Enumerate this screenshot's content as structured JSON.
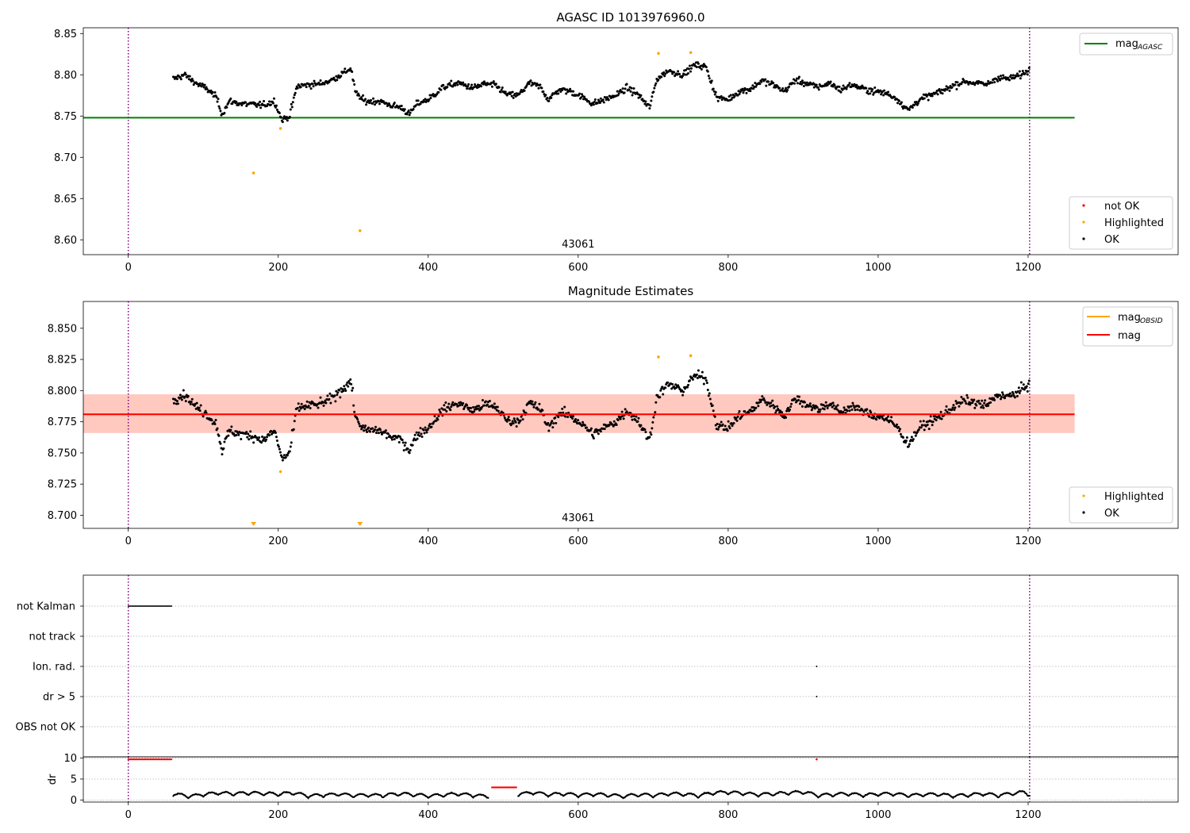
{
  "chart_data": [
    {
      "type": "scatter",
      "title": "AGASC ID 1013976960.0",
      "xlim": [
        -60,
        1400
      ],
      "ylim": [
        8.582,
        8.857
      ],
      "xticks": [
        0,
        200,
        400,
        600,
        800,
        1000,
        1200
      ],
      "yticks": [
        8.6,
        8.65,
        8.7,
        8.75,
        8.8,
        8.85
      ],
      "ytick_labels": [
        "8.60",
        "8.65",
        "8.70",
        "8.75",
        "8.80",
        "8.85"
      ],
      "vlines": [
        0,
        1202
      ],
      "vline_color": "#800080",
      "obsid_label": "43061",
      "obsid_label_x": 600,
      "hline": {
        "name": "mag",
        "subscript": "AGASC",
        "value": 8.748,
        "xrange": [
          -60,
          1262
        ],
        "color": "#008000"
      },
      "legend_lines": [
        {
          "label": "mag",
          "subscript": "AGASC",
          "color": "#008000"
        }
      ],
      "legend_markers": [
        {
          "label": "not OK",
          "color": "#ff0000"
        },
        {
          "label": "Highlighted",
          "color": "#ffa500"
        },
        {
          "label": "OK",
          "color": "#000000"
        }
      ],
      "highlighted": [
        {
          "x": 167,
          "y": 8.681
        },
        {
          "x": 203,
          "y": 8.735
        },
        {
          "x": 309,
          "y": 8.611
        },
        {
          "x": 707,
          "y": 8.826
        },
        {
          "x": 750,
          "y": 8.827
        }
      ],
      "ok_trend": [
        [
          60,
          8.795
        ],
        [
          75,
          8.8
        ],
        [
          90,
          8.79
        ],
        [
          105,
          8.783
        ],
        [
          118,
          8.772
        ],
        [
          125,
          8.752
        ],
        [
          135,
          8.768
        ],
        [
          150,
          8.765
        ],
        [
          165,
          8.764
        ],
        [
          180,
          8.763
        ],
        [
          195,
          8.768
        ],
        [
          205,
          8.745
        ],
        [
          215,
          8.75
        ],
        [
          225,
          8.786
        ],
        [
          240,
          8.788
        ],
        [
          255,
          8.789
        ],
        [
          270,
          8.793
        ],
        [
          285,
          8.801
        ],
        [
          297,
          8.808
        ],
        [
          303,
          8.778
        ],
        [
          315,
          8.768
        ],
        [
          335,
          8.768
        ],
        [
          350,
          8.763
        ],
        [
          365,
          8.76
        ],
        [
          375,
          8.752
        ],
        [
          385,
          8.765
        ],
        [
          400,
          8.77
        ],
        [
          420,
          8.785
        ],
        [
          440,
          8.79
        ],
        [
          460,
          8.784
        ],
        [
          475,
          8.789
        ],
        [
          490,
          8.787
        ],
        [
          505,
          8.776
        ],
        [
          520,
          8.775
        ],
        [
          535,
          8.79
        ],
        [
          550,
          8.785
        ],
        [
          560,
          8.77
        ],
        [
          575,
          8.782
        ],
        [
          590,
          8.78
        ],
        [
          605,
          8.773
        ],
        [
          620,
          8.765
        ],
        [
          635,
          8.77
        ],
        [
          650,
          8.775
        ],
        [
          665,
          8.784
        ],
        [
          680,
          8.776
        ],
        [
          695,
          8.76
        ],
        [
          705,
          8.795
        ],
        [
          720,
          8.805
        ],
        [
          740,
          8.8
        ],
        [
          755,
          8.812
        ],
        [
          770,
          8.81
        ],
        [
          785,
          8.772
        ],
        [
          800,
          8.77
        ],
        [
          815,
          8.78
        ],
        [
          830,
          8.783
        ],
        [
          845,
          8.793
        ],
        [
          860,
          8.788
        ],
        [
          875,
          8.78
        ],
        [
          890,
          8.794
        ],
        [
          905,
          8.789
        ],
        [
          920,
          8.785
        ],
        [
          935,
          8.79
        ],
        [
          950,
          8.782
        ],
        [
          965,
          8.788
        ],
        [
          980,
          8.783
        ],
        [
          995,
          8.78
        ],
        [
          1010,
          8.778
        ],
        [
          1025,
          8.771
        ],
        [
          1040,
          8.757
        ],
        [
          1055,
          8.77
        ],
        [
          1070,
          8.775
        ],
        [
          1085,
          8.78
        ],
        [
          1100,
          8.787
        ],
        [
          1115,
          8.792
        ],
        [
          1130,
          8.79
        ],
        [
          1145,
          8.788
        ],
        [
          1160,
          8.797
        ],
        [
          1175,
          8.795
        ],
        [
          1190,
          8.8
        ],
        [
          1202,
          8.806
        ]
      ],
      "ok_scatter": 0.006
    },
    {
      "type": "scatter",
      "title": "Magnitude Estimates",
      "xlim": [
        -60,
        1400
      ],
      "ylim": [
        8.6895,
        8.8715
      ],
      "xticks": [
        0,
        200,
        400,
        600,
        800,
        1000,
        1200
      ],
      "yticks": [
        8.7,
        8.725,
        8.75,
        8.775,
        8.8,
        8.825,
        8.85
      ],
      "ytick_labels": [
        "8.700",
        "8.725",
        "8.750",
        "8.775",
        "8.800",
        "8.825",
        "8.850"
      ],
      "vlines": [
        0,
        1202
      ],
      "vline_color": "#800080",
      "obsid_label": "43061",
      "obsid_label_x": 600,
      "bands": [
        {
          "name": "mag range",
          "y0": 8.766,
          "y1": 8.797,
          "xrange": [
            -60,
            1262
          ],
          "color": "#ffc0cb",
          "opacity": 0.5
        },
        {
          "name": "mag_OBSID range",
          "y0": 8.766,
          "y1": 8.797,
          "xrange": [
            -60,
            1262
          ],
          "color": "#ffa07a",
          "opacity": 0.35
        }
      ],
      "hlines": [
        {
          "name": "mag_OBSID",
          "value": 8.781,
          "xrange": [
            -60,
            1262
          ],
          "color": "#ffa500"
        },
        {
          "name": "mag",
          "value": 8.781,
          "xrange": [
            -60,
            1262
          ],
          "color": "#ff0000"
        }
      ],
      "legend_lines": [
        {
          "label": "mag",
          "subscript": "OBSID",
          "color": "#ffa500"
        },
        {
          "label": "mag",
          "subscript": "",
          "color": "#ff0000"
        }
      ],
      "legend_markers": [
        {
          "label": "Highlighted",
          "color": "#ffa500"
        },
        {
          "label": "OK",
          "color": "#000000"
        }
      ],
      "highlighted": [
        {
          "x": 203,
          "y": 8.735
        },
        {
          "x": 707,
          "y": 8.827
        },
        {
          "x": 750,
          "y": 8.828
        }
      ],
      "offscale_markers": [
        {
          "x": 167,
          "direction": "down"
        },
        {
          "x": 309,
          "direction": "down"
        }
      ],
      "ok_trend": [
        [
          60,
          8.793
        ],
        [
          75,
          8.797
        ],
        [
          90,
          8.787
        ],
        [
          105,
          8.781
        ],
        [
          118,
          8.772
        ],
        [
          125,
          8.752
        ],
        [
          135,
          8.768
        ],
        [
          150,
          8.765
        ],
        [
          165,
          8.764
        ],
        [
          180,
          8.76
        ],
        [
          195,
          8.768
        ],
        [
          205,
          8.745
        ],
        [
          215,
          8.75
        ],
        [
          225,
          8.786
        ],
        [
          240,
          8.788
        ],
        [
          255,
          8.789
        ],
        [
          270,
          8.793
        ],
        [
          285,
          8.801
        ],
        [
          297,
          8.808
        ],
        [
          303,
          8.778
        ],
        [
          315,
          8.768
        ],
        [
          335,
          8.768
        ],
        [
          350,
          8.763
        ],
        [
          365,
          8.76
        ],
        [
          375,
          8.752
        ],
        [
          385,
          8.765
        ],
        [
          400,
          8.77
        ],
        [
          420,
          8.785
        ],
        [
          440,
          8.79
        ],
        [
          460,
          8.784
        ],
        [
          475,
          8.789
        ],
        [
          490,
          8.787
        ],
        [
          505,
          8.776
        ],
        [
          520,
          8.775
        ],
        [
          535,
          8.79
        ],
        [
          550,
          8.785
        ],
        [
          560,
          8.77
        ],
        [
          575,
          8.782
        ],
        [
          590,
          8.78
        ],
        [
          605,
          8.773
        ],
        [
          620,
          8.765
        ],
        [
          635,
          8.77
        ],
        [
          650,
          8.775
        ],
        [
          665,
          8.784
        ],
        [
          680,
          8.776
        ],
        [
          695,
          8.76
        ],
        [
          705,
          8.795
        ],
        [
          720,
          8.805
        ],
        [
          740,
          8.8
        ],
        [
          755,
          8.812
        ],
        [
          770,
          8.81
        ],
        [
          785,
          8.772
        ],
        [
          800,
          8.77
        ],
        [
          815,
          8.78
        ],
        [
          830,
          8.783
        ],
        [
          845,
          8.793
        ],
        [
          860,
          8.788
        ],
        [
          875,
          8.78
        ],
        [
          890,
          8.794
        ],
        [
          905,
          8.789
        ],
        [
          920,
          8.785
        ],
        [
          935,
          8.79
        ],
        [
          950,
          8.782
        ],
        [
          965,
          8.788
        ],
        [
          980,
          8.783
        ],
        [
          995,
          8.78
        ],
        [
          1010,
          8.778
        ],
        [
          1025,
          8.771
        ],
        [
          1040,
          8.757
        ],
        [
          1055,
          8.77
        ],
        [
          1070,
          8.775
        ],
        [
          1085,
          8.78
        ],
        [
          1100,
          8.787
        ],
        [
          1115,
          8.792
        ],
        [
          1130,
          8.79
        ],
        [
          1145,
          8.788
        ],
        [
          1160,
          8.797
        ],
        [
          1175,
          8.795
        ],
        [
          1190,
          8.8
        ],
        [
          1202,
          8.806
        ]
      ],
      "ok_scatter": 0.006
    },
    {
      "type": "scatter",
      "title": "",
      "xlim": [
        -60,
        1400
      ],
      "categories": [
        "not Kalman",
        "not track",
        "Ion. rad.",
        "dr > 5",
        "OBS not OK"
      ],
      "vlines": [
        0,
        1202
      ],
      "vline_color": "#800080",
      "flags": [
        {
          "category": "not Kalman",
          "x_ranges": [
            [
              0,
              58
            ]
          ],
          "color": "#000000"
        },
        {
          "category": "Ion. rad.",
          "x_points": [
            918
          ],
          "color": "#000000"
        },
        {
          "category": "dr > 5",
          "x_points": [
            918
          ],
          "color": "#000000"
        }
      ]
    },
    {
      "type": "scatter",
      "title": "",
      "ylabel": "dr",
      "xlim": [
        -60,
        1400
      ],
      "ylim": [
        -0.5,
        10.3
      ],
      "xticks": [
        0,
        200,
        400,
        600,
        800,
        1000,
        1200
      ],
      "yticks": [
        0,
        5,
        10
      ],
      "ytick_labels": [
        "0",
        "5",
        "10"
      ],
      "vlines": [
        0,
        1202
      ],
      "vline_color": "#800080",
      "red_points": [
        {
          "x_range": [
            0,
            58
          ],
          "y": 9.7
        },
        {
          "x_range": [
            485,
            518
          ],
          "y": 3.0
        },
        {
          "x_points": [
            918
          ],
          "y": 9.7
        }
      ],
      "ok_trend": [
        [
          60,
          1.4
        ],
        [
          80,
          0.8
        ],
        [
          100,
          1.2
        ],
        [
          120,
          1.6
        ],
        [
          140,
          1.4
        ],
        [
          160,
          1.6
        ],
        [
          180,
          1.5
        ],
        [
          200,
          1.3
        ],
        [
          220,
          1.6
        ],
        [
          240,
          0.9
        ],
        [
          260,
          1.1
        ],
        [
          280,
          1.3
        ],
        [
          300,
          1.0
        ],
        [
          320,
          1.1
        ],
        [
          340,
          1.0
        ],
        [
          360,
          1.4
        ],
        [
          380,
          1.2
        ],
        [
          400,
          0.9
        ],
        [
          420,
          1.1
        ],
        [
          440,
          1.4
        ],
        [
          460,
          1.0
        ],
        [
          480,
          0.8
        ],
        [
          520,
          1.3
        ],
        [
          540,
          1.7
        ],
        [
          560,
          1.2
        ],
        [
          580,
          1.4
        ],
        [
          600,
          1.1
        ],
        [
          620,
          1.3
        ],
        [
          640,
          1.1
        ],
        [
          660,
          0.8
        ],
        [
          680,
          1.2
        ],
        [
          700,
          1.0
        ],
        [
          720,
          1.4
        ],
        [
          740,
          1.3
        ],
        [
          760,
          1.0
        ],
        [
          780,
          1.6
        ],
        [
          800,
          1.8
        ],
        [
          820,
          1.5
        ],
        [
          840,
          1.2
        ],
        [
          860,
          1.4
        ],
        [
          880,
          1.6
        ],
        [
          900,
          1.8
        ],
        [
          920,
          1.0
        ],
        [
          940,
          1.2
        ],
        [
          960,
          1.4
        ],
        [
          980,
          1.1
        ],
        [
          1000,
          1.3
        ],
        [
          1020,
          1.4
        ],
        [
          1040,
          1.0
        ],
        [
          1060,
          1.2
        ],
        [
          1080,
          1.3
        ],
        [
          1100,
          0.9
        ],
        [
          1120,
          1.1
        ],
        [
          1140,
          1.4
        ],
        [
          1160,
          1.0
        ],
        [
          1180,
          1.5
        ],
        [
          1195,
          1.8
        ],
        [
          1202,
          1.2
        ]
      ],
      "ok_scatter": 0.35
    }
  ]
}
